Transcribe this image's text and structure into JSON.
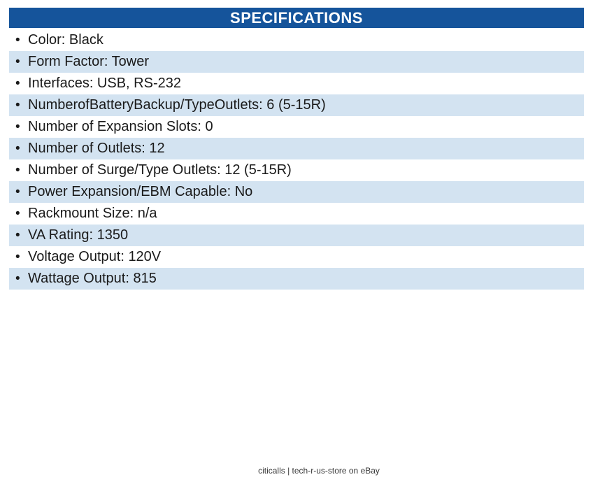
{
  "header": {
    "title": "SPECIFICATIONS"
  },
  "specs": {
    "bullet": "•",
    "items": [
      "Color: Black",
      "Form Factor: Tower",
      "Interfaces: USB, RS-232",
      "NumberofBatteryBackup/TypeOutlets: 6 (5-15R)",
      "Number of Expansion Slots: 0",
      "Number of Outlets: 12",
      "Number of Surge/Type Outlets: 12 (5-15R)",
      "Power Expansion/EBM Capable: No",
      "Rackmount Size: n/a",
      "VA Rating: 1350",
      "Voltage Output: 120V",
      "Wattage Output: 815"
    ]
  },
  "footer": {
    "text": "citicalls | tech-r-us-store on eBay"
  },
  "colors": {
    "header_bg": "#15549B",
    "header_text": "#FFFFFF",
    "row_alt_bg": "#D3E3F1",
    "body_text": "#1A1A1A",
    "footer_text": "#3A3A3A"
  }
}
